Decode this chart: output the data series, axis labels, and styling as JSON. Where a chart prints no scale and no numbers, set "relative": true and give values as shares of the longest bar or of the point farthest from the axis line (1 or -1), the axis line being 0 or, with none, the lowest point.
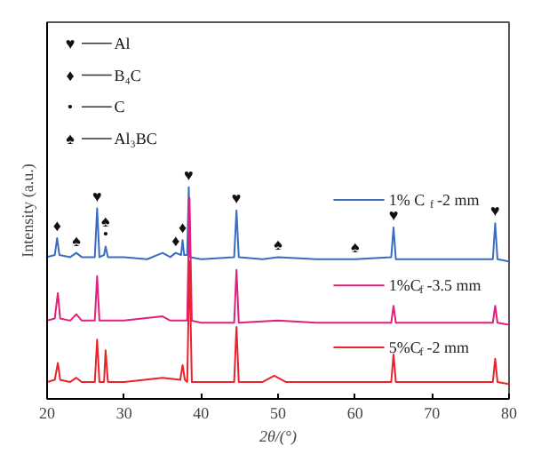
{
  "chart_data": {
    "type": "line",
    "relative": true,
    "legend": "right",
    "xlabel": "2θ/(°)",
    "ylabel": "Intensity (a.u.)",
    "xlim": [
      20,
      80
    ],
    "xticks": [
      20,
      30,
      40,
      50,
      60,
      70,
      80
    ],
    "tick_labels": "x",
    "grid": false,
    "series": [
      {
        "name": "1% C$_{f}$-2 mm",
        "color": "#3a6cc0",
        "x": [
          20,
          21,
          21.3,
          21.6,
          23,
          23.8,
          24.5,
          26.2,
          26.5,
          26.8,
          27.4,
          27.6,
          27.9,
          30,
          33,
          35,
          36,
          36.7,
          37.4,
          37.6,
          37.8,
          38.2,
          38.4,
          38.6,
          40,
          44.3,
          44.6,
          44.9,
          48,
          50,
          55,
          60,
          64.7,
          65,
          65.3,
          70,
          75,
          77.9,
          78.2,
          78.5,
          80
        ],
        "values": [
          0.67,
          0.68,
          0.76,
          0.68,
          0.67,
          0.69,
          0.67,
          0.67,
          0.9,
          0.67,
          0.68,
          0.72,
          0.67,
          0.67,
          0.66,
          0.69,
          0.67,
          0.69,
          0.68,
          0.75,
          0.68,
          0.68,
          1.0,
          0.67,
          0.66,
          0.67,
          0.89,
          0.67,
          0.66,
          0.67,
          0.66,
          0.66,
          0.67,
          0.81,
          0.66,
          0.66,
          0.66,
          0.66,
          0.83,
          0.66,
          0.65
        ]
      },
      {
        "name": "1%C$_{f}$-3.5 mm",
        "color": "#e0207a",
        "x": [
          20,
          21,
          21.4,
          21.7,
          23,
          23.8,
          24.5,
          26.2,
          26.5,
          26.8,
          30,
          35,
          36,
          38.2,
          38.5,
          38.8,
          40,
          44.3,
          44.6,
          44.9,
          50,
          55,
          60,
          64.7,
          65,
          65.3,
          70,
          77.9,
          78.2,
          78.5,
          80
        ],
        "values": [
          0.37,
          0.38,
          0.5,
          0.38,
          0.37,
          0.4,
          0.37,
          0.37,
          0.58,
          0.37,
          0.37,
          0.39,
          0.37,
          0.37,
          0.95,
          0.37,
          0.36,
          0.36,
          0.61,
          0.36,
          0.37,
          0.36,
          0.36,
          0.36,
          0.44,
          0.36,
          0.36,
          0.36,
          0.44,
          0.36,
          0.35
        ]
      },
      {
        "name": "5%C$_{f}$-2 mm",
        "color": "#e8232b",
        "x": [
          20,
          21,
          21.4,
          21.7,
          23,
          23.8,
          24.5,
          26.2,
          26.5,
          26.8,
          27.4,
          27.6,
          27.9,
          30,
          35,
          37.3,
          37.6,
          37.9,
          38.2,
          38.5,
          38.8,
          40,
          44.3,
          44.6,
          44.9,
          48,
          49.5,
          51,
          60,
          64.7,
          65,
          65.3,
          70,
          77.9,
          78.2,
          78.5,
          80
        ],
        "values": [
          0.08,
          0.09,
          0.17,
          0.09,
          0.08,
          0.1,
          0.08,
          0.08,
          0.28,
          0.08,
          0.08,
          0.23,
          0.08,
          0.08,
          0.1,
          0.09,
          0.16,
          0.09,
          0.08,
          0.65,
          0.08,
          0.08,
          0.08,
          0.34,
          0.08,
          0.08,
          0.11,
          0.08,
          0.08,
          0.08,
          0.21,
          0.08,
          0.08,
          0.08,
          0.19,
          0.08,
          0.07
        ]
      }
    ],
    "annotations": [
      "♥ Al",
      "♦ B₄C",
      "• C",
      "♠ Al₃BC",
      {
        "text": "♦",
        "x": 21.3,
        "y": 0.76
      },
      {
        "text": "♠",
        "x": 23.8,
        "y": 0.69
      },
      {
        "text": "♥",
        "x": 26.5,
        "y": 0.9
      },
      {
        "text": "•",
        "x": 27.6,
        "y": 0.72
      },
      {
        "text": "♦",
        "x": 36.7,
        "y": 0.69
      },
      {
        "text": "♦",
        "x": 37.6,
        "y": 0.75
      },
      {
        "text": "♥",
        "x": 38.4,
        "y": 1.0
      },
      {
        "text": "♥",
        "x": 44.6,
        "y": 0.89
      },
      {
        "text": "♠",
        "x": 50,
        "y": 0.67
      },
      {
        "text": "♠",
        "x": 60,
        "y": 0.66
      },
      {
        "text": "♥",
        "x": 65,
        "y": 0.81
      },
      {
        "text": "♥",
        "x": 78.2,
        "y": 0.83
      },
      {
        "text": "♠",
        "x": 27.6,
        "y": 0.72
      }
    ]
  }
}
